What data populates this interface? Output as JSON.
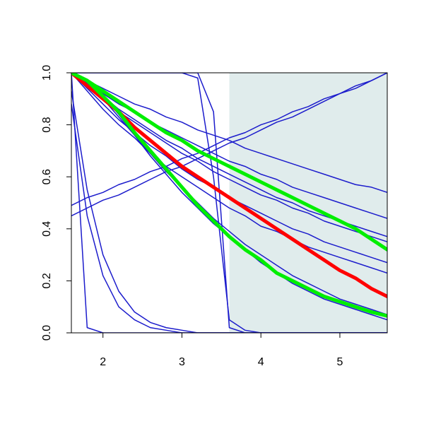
{
  "chart_data": {
    "type": "line",
    "x": [
      1.6,
      1.8,
      2.0,
      2.2,
      2.4,
      2.6,
      2.8,
      3.0,
      3.2,
      3.4,
      3.6,
      3.8,
      4.0,
      4.2,
      4.4,
      4.6,
      4.8,
      5.0,
      5.2,
      5.4,
      5.6
    ],
    "xlim": [
      1.6,
      5.6
    ],
    "xticks": [
      2,
      3,
      4,
      5
    ],
    "ylim": [
      0,
      1
    ],
    "yticks": [
      {
        "value": 0,
        "label": "0.0"
      },
      0.2,
      0.4,
      0.6,
      0.8,
      {
        "value": 1,
        "label": "1.0"
      }
    ],
    "shaded_region": {
      "x": [
        3.6,
        5.6
      ],
      "color": "#e0ecec"
    },
    "series": [
      {
        "color": "#1c1ccc",
        "line_width": 1.5,
        "values": [
          1,
          0.97,
          0.94,
          0.91,
          0.88,
          0.86,
          0.83,
          0.81,
          0.78,
          0.76,
          0.74,
          0.71,
          0.69,
          0.67,
          0.65,
          0.63,
          0.61,
          0.59,
          0.57,
          0.56,
          0.54
        ]
      },
      {
        "color": "#1c1ccc",
        "line_width": 1.5,
        "values": [
          1,
          0.96,
          0.92,
          0.88,
          0.85,
          0.81,
          0.78,
          0.75,
          0.72,
          0.69,
          0.66,
          0.64,
          0.61,
          0.59,
          0.56,
          0.54,
          0.52,
          0.5,
          0.48,
          0.46,
          0.44
        ]
      },
      {
        "color": "#1c1ccc",
        "line_width": 1.5,
        "values": [
          1,
          0.95,
          0.91,
          0.86,
          0.82,
          0.78,
          0.74,
          0.71,
          0.67,
          0.64,
          0.61,
          0.58,
          0.55,
          0.52,
          0.5,
          0.47,
          0.45,
          0.43,
          0.41,
          0.39,
          0.37
        ]
      },
      {
        "color": "#1c1ccc",
        "line_width": 1.5,
        "values": [
          1,
          0.95,
          0.9,
          0.85,
          0.81,
          0.77,
          0.73,
          0.69,
          0.66,
          0.62,
          0.59,
          0.56,
          0.53,
          0.51,
          0.48,
          0.46,
          0.43,
          0.41,
          0.39,
          0.37,
          0.35
        ]
      },
      {
        "color": "#1c1ccc",
        "line_width": 1.5,
        "values": [
          1,
          0.94,
          0.88,
          0.82,
          0.77,
          0.72,
          0.68,
          0.63,
          0.59,
          0.56,
          0.52,
          0.49,
          0.46,
          0.43,
          0.4,
          0.38,
          0.35,
          0.33,
          0.31,
          0.29,
          0.27
        ]
      },
      {
        "color": "#1c1ccc",
        "line_width": 1.5,
        "values": [
          1,
          0.93,
          0.86,
          0.8,
          0.75,
          0.69,
          0.64,
          0.6,
          0.56,
          0.52,
          0.48,
          0.45,
          0.41,
          0.39,
          0.36,
          0.33,
          0.31,
          0.29,
          0.27,
          0.25,
          0.23
        ]
      },
      {
        "color": "#1c1ccc",
        "line_width": 1.5,
        "values": [
          1,
          0.97,
          0.91,
          0.84,
          0.76,
          0.68,
          0.61,
          0.54,
          0.48,
          0.42,
          0.37,
          0.32,
          0.27,
          0.23,
          0.19,
          0.16,
          0.13,
          0.11,
          0.09,
          0.07,
          0.05
        ]
      },
      {
        "color": "#1c1ccc",
        "line_width": 1.5,
        "values": [
          1,
          0.96,
          0.9,
          0.83,
          0.76,
          0.69,
          0.62,
          0.56,
          0.5,
          0.44,
          0.39,
          0.34,
          0.3,
          0.26,
          0.22,
          0.19,
          0.16,
          0.13,
          0.11,
          0.09,
          0.07
        ]
      },
      {
        "color": "#1c1ccc",
        "line_width": 1.5,
        "values": [
          0.49,
          0.52,
          0.54,
          0.57,
          0.59,
          0.62,
          0.64,
          0.67,
          0.69,
          0.72,
          0.75,
          0.77,
          0.8,
          0.82,
          0.85,
          0.87,
          0.9,
          0.92,
          0.95,
          0.97,
          1.0
        ]
      },
      {
        "color": "#1c1ccc",
        "line_width": 1.5,
        "values": [
          0.45,
          0.48,
          0.51,
          0.53,
          0.56,
          0.59,
          0.62,
          0.64,
          0.67,
          0.7,
          0.73,
          0.75,
          0.78,
          0.81,
          0.83,
          0.86,
          0.89,
          0.92,
          0.94,
          0.97,
          1.0
        ]
      },
      {
        "color": "#1c1ccc",
        "line_width": 1.5,
        "values": [
          1,
          1,
          1,
          1,
          1,
          1,
          1,
          1,
          1,
          0.85,
          0.02,
          0,
          0,
          0,
          0,
          0,
          0,
          0,
          0,
          0,
          0
        ]
      },
      {
        "color": "#1c1ccc",
        "line_width": 1.5,
        "values": [
          1,
          1,
          1,
          1,
          1,
          1,
          1,
          1,
          0.98,
          0.6,
          0.05,
          0.01,
          0,
          0,
          0,
          0,
          0,
          0,
          0,
          0,
          0
        ]
      },
      {
        "color": "#1c1ccc",
        "line_width": 1.5,
        "values": [
          0.93,
          0.55,
          0.3,
          0.16,
          0.08,
          0.04,
          0.02,
          0.01,
          0,
          0,
          0,
          0,
          0,
          0,
          0,
          0,
          0,
          0,
          0,
          0,
          0
        ]
      },
      {
        "color": "#1c1ccc",
        "line_width": 1.5,
        "values": [
          0.88,
          0.45,
          0.22,
          0.1,
          0.05,
          0.02,
          0.01,
          0,
          0,
          0,
          0,
          0,
          0,
          0,
          0,
          0,
          0,
          0,
          0,
          0,
          0
        ]
      },
      {
        "color": "#1c1ccc",
        "line_width": 1.5,
        "values": [
          1,
          0.02,
          0,
          0,
          0,
          0,
          0,
          0,
          0,
          0,
          0,
          0,
          0,
          0,
          0,
          0,
          0,
          0,
          0,
          0,
          0
        ]
      },
      {
        "color": "#ff0000",
        "line_width": 5,
        "values": [
          1,
          0.95,
          0.9,
          0.85,
          0.79,
          0.74,
          0.69,
          0.64,
          0.6,
          0.56,
          0.52,
          0.48,
          0.44,
          0.4,
          0.36,
          0.32,
          0.28,
          0.24,
          0.21,
          0.17,
          0.14
        ]
      },
      {
        "color": "#00ee00",
        "line_width": 5,
        "values": [
          1,
          0.97,
          0.93,
          0.89,
          0.85,
          0.81,
          0.77,
          0.74,
          0.7,
          0.67,
          0.64,
          0.61,
          0.58,
          0.55,
          0.52,
          0.49,
          0.46,
          0.43,
          0.4,
          0.36,
          0.32
        ]
      },
      {
        "color": "#00ee00",
        "line_width": 5,
        "values": [
          1,
          0.97,
          0.91,
          0.85,
          0.77,
          0.7,
          0.63,
          0.56,
          0.49,
          0.43,
          0.37,
          0.32,
          0.28,
          0.23,
          0.2,
          0.17,
          0.14,
          0.12,
          0.1,
          0.08,
          0.065
        ]
      }
    ]
  }
}
